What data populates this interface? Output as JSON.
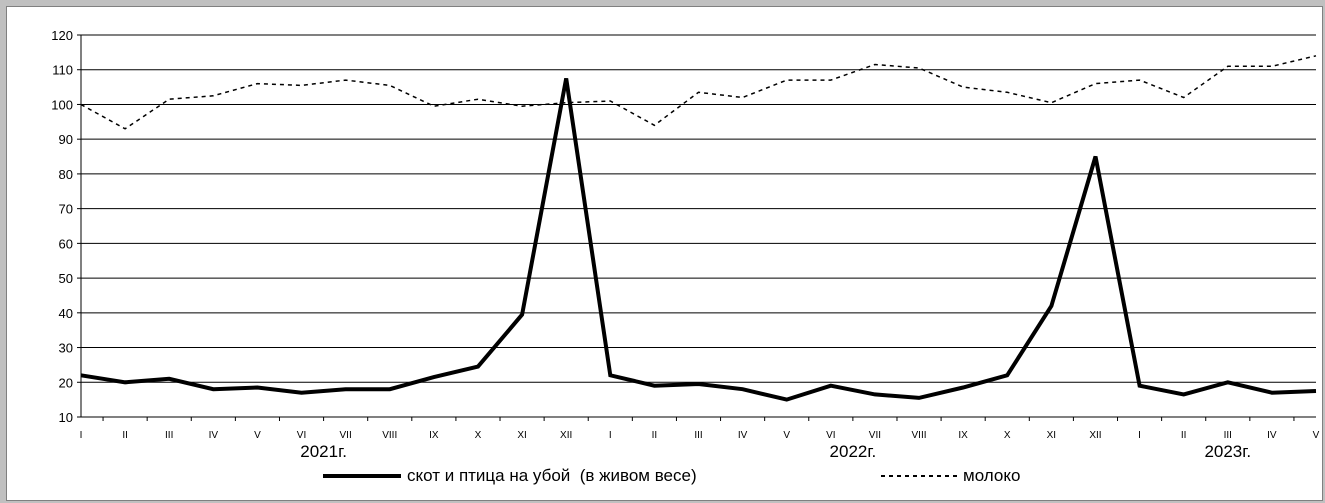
{
  "chart_data": {
    "type": "line",
    "categories": [
      "I",
      "II",
      "III",
      "IV",
      "V",
      "VI",
      "VII",
      "VIII",
      "IX",
      "X",
      "XI",
      "XII",
      "I",
      "II",
      "III",
      "IV",
      "V",
      "VI",
      "VII",
      "VIII",
      "IX",
      "X",
      "XI",
      "XII",
      "I",
      "II",
      "III",
      "IV",
      "V"
    ],
    "year_labels": [
      {
        "label": "2021г.",
        "start": 0,
        "end": 11
      },
      {
        "label": "2022г.",
        "start": 12,
        "end": 23
      },
      {
        "label": "2023г.",
        "start": 24,
        "end": 28
      }
    ],
    "series": [
      {
        "name": "скот и птица на убой  (в живом весе)",
        "style": "solid",
        "values": [
          22,
          20,
          21,
          18,
          18.5,
          17,
          18,
          18,
          21.5,
          24.5,
          39.5,
          107.5,
          22,
          19,
          19.5,
          18,
          15,
          19,
          16.5,
          15.5,
          18.5,
          22,
          42,
          85,
          19,
          16.5,
          20,
          17,
          17.5
        ]
      },
      {
        "name": "молоко",
        "style": "dashed",
        "values": [
          100,
          93,
          101.5,
          102.5,
          106,
          105.5,
          107,
          105.5,
          99.5,
          101.5,
          99.5,
          100.5,
          101,
          94,
          103.5,
          102,
          107,
          107,
          111.5,
          110.5,
          105,
          103.5,
          100.5,
          106,
          107,
          102,
          111,
          111,
          114
        ]
      }
    ],
    "ylim": [
      10,
      120
    ],
    "yticks": [
      10,
      20,
      30,
      40,
      50,
      60,
      70,
      80,
      90,
      100,
      110,
      120
    ],
    "grid": true,
    "legend_position": "bottom",
    "colors": {
      "line": "#000000",
      "grid": "#000000",
      "frame_bg": "#c0c0c0"
    }
  }
}
